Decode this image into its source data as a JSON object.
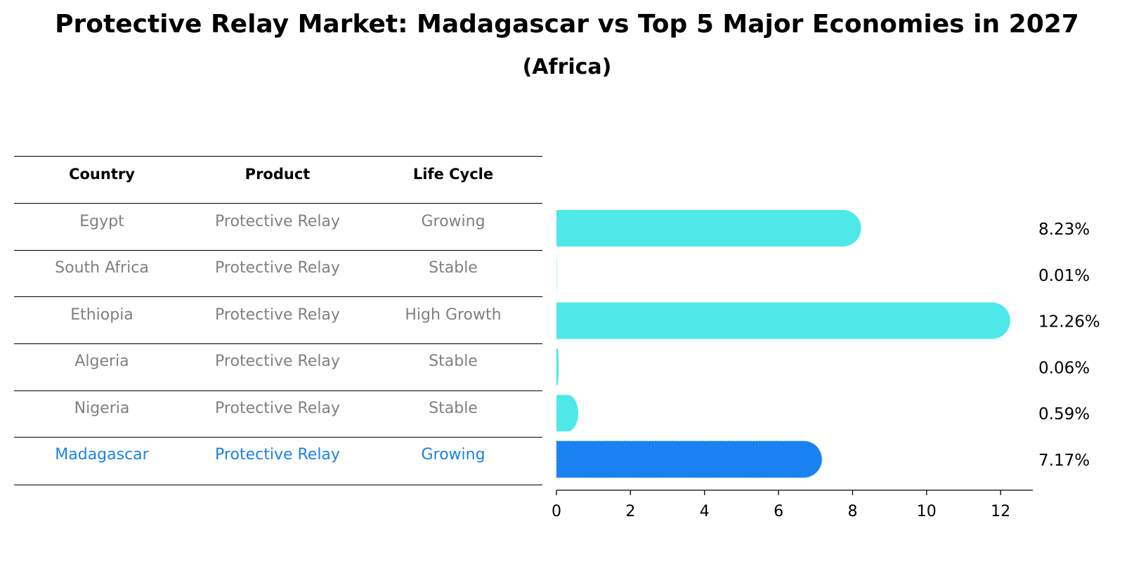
{
  "title": "Protective Relay Market: Madagascar vs Top 5 Major Economies in 2027",
  "subtitle": "(Africa)",
  "table": {
    "headers": [
      "Country",
      "Product",
      "Life Cycle"
    ],
    "rows": [
      {
        "country": "Egypt",
        "product": "Protective Relay",
        "life_cycle": "Growing",
        "highlight": false
      },
      {
        "country": "South Africa",
        "product": "Protective Relay",
        "life_cycle": "Stable",
        "highlight": false
      },
      {
        "country": "Ethiopia",
        "product": "Protective Relay",
        "life_cycle": "High Growth",
        "highlight": false
      },
      {
        "country": "Algeria",
        "product": "Protective Relay",
        "life_cycle": "Stable",
        "highlight": false
      },
      {
        "country": "Nigeria",
        "product": "Protective Relay",
        "life_cycle": "Stable",
        "highlight": false
      },
      {
        "country": "Madagascar",
        "product": "Protective Relay",
        "life_cycle": "Growing",
        "highlight": true
      }
    ]
  },
  "colors": {
    "bar": "#4ee8e8",
    "highlight_bar": "#1a82f0",
    "highlight_text": "#1a82e8",
    "muted_text": "#808080"
  },
  "chart_data": {
    "type": "bar",
    "orientation": "horizontal",
    "categories": [
      "Egypt",
      "South Africa",
      "Ethiopia",
      "Algeria",
      "Nigeria",
      "Madagascar"
    ],
    "values": [
      8.23,
      0.01,
      12.26,
      0.06,
      0.59,
      7.17
    ],
    "value_labels": [
      "8.23%",
      "0.01%",
      "12.26%",
      "0.06%",
      "0.59%",
      "7.17%"
    ],
    "highlight_category": "Madagascar",
    "xlim": [
      0,
      12.87
    ],
    "xticks": [
      0,
      2,
      4,
      6,
      8,
      10,
      12
    ],
    "xlabel": "",
    "ylabel": "",
    "grid": false
  }
}
